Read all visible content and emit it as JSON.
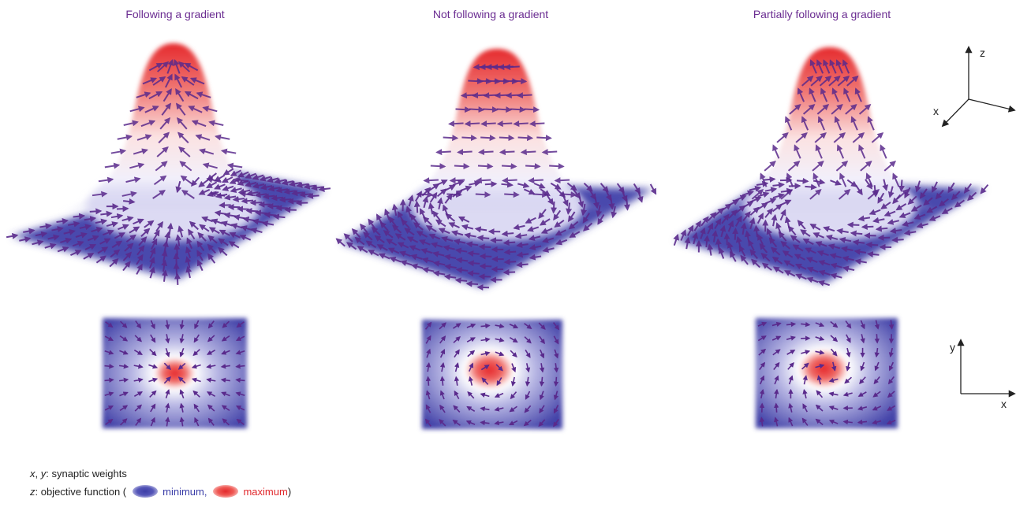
{
  "panels": [
    {
      "title": "Following a gradient"
    },
    {
      "title": "Not following a gradient"
    },
    {
      "title": "Partially following a gradient"
    }
  ],
  "axes3d": {
    "z": "z",
    "x": "x"
  },
  "axes2d": {
    "y": "y",
    "x": "x"
  },
  "legend": {
    "xy_var": "x",
    "xy_sep": ", ",
    "xy_var2": "y",
    "xy_text": ": synaptic weights",
    "z_var": "z",
    "z_text": ": objective function (",
    "min_label": "minimum,",
    "max_label": "maximum",
    "close": ")"
  },
  "colors": {
    "title": "#6a2c91",
    "arrow": "#5a2a8c",
    "min": "#3d3ea6",
    "max": "#e3282b"
  }
}
